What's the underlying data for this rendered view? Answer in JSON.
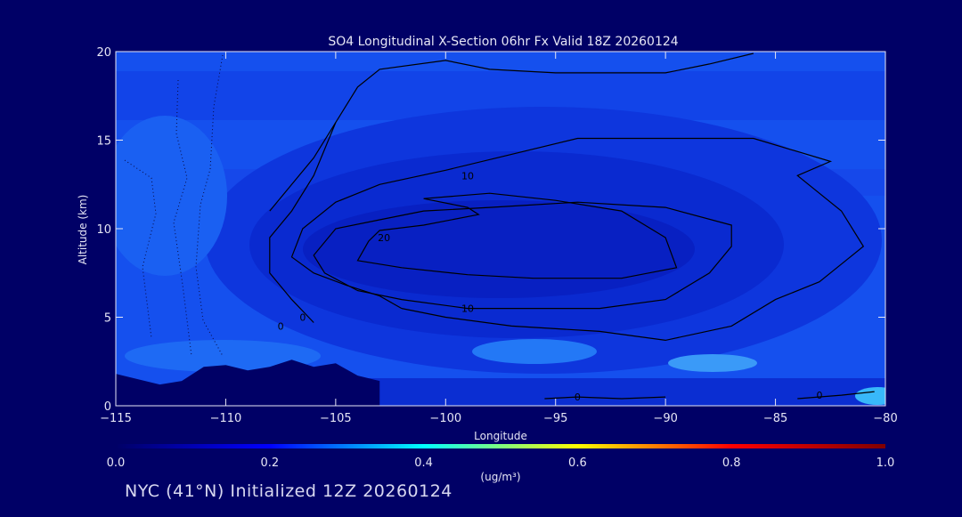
{
  "chart_data": {
    "type": "heatmap",
    "title": "SO4 Longitudinal X-Section 06hr  Fx Valid 18Z 20260124",
    "xlabel": "Longitude",
    "ylabel": "Altitude (km)",
    "xlim": [
      -115,
      -80
    ],
    "ylim": [
      0,
      20
    ],
    "x_ticks": [
      -115,
      -110,
      -105,
      -100,
      -95,
      -90,
      -85,
      -80
    ],
    "x_tick_labels": [
      "−115",
      "−110",
      "−105",
      "−100",
      "−95",
      "−90",
      "−85",
      "−80"
    ],
    "y_ticks": [
      0,
      5,
      10,
      15,
      20
    ],
    "y_tick_labels": [
      "0",
      "5",
      "10",
      "15",
      "20"
    ],
    "colorbar": {
      "min": 0.0,
      "max": 1.0,
      "ticks": [
        "0.0",
        "0.2",
        "0.4",
        "0.6",
        "0.8",
        "1.0"
      ],
      "unit_label": "(ug/m³)",
      "colors": [
        "#000066",
        "#0000ff",
        "#00ffff",
        "#ffff00",
        "#ff0000",
        "#800000"
      ]
    },
    "terrain": [
      [
        -115,
        1.8
      ],
      [
        -114,
        1.5
      ],
      [
        -113,
        1.2
      ],
      [
        -112,
        1.4
      ],
      [
        -111,
        2.2
      ],
      [
        -110,
        2.3
      ],
      [
        -109,
        2.0
      ],
      [
        -108,
        2.2
      ],
      [
        -107,
        2.6
      ],
      [
        -106,
        2.2
      ],
      [
        -105,
        2.4
      ],
      [
        -104,
        1.7
      ],
      [
        -103,
        1.4
      ]
    ],
    "contours": [
      {
        "level": "0",
        "label_at": [
          -107.5,
          4.5
        ],
        "points": [
          [
            -108,
            11
          ],
          [
            -106,
            14
          ],
          [
            -105,
            16
          ],
          [
            -104,
            18
          ],
          [
            -103,
            19
          ],
          [
            -100,
            19.5
          ],
          [
            -98,
            19
          ],
          [
            -95,
            18.8
          ],
          [
            -90,
            18.8
          ],
          [
            -88,
            19.3
          ],
          [
            -86,
            19.9
          ]
        ]
      },
      {
        "level": "0",
        "label_at": [
          -106.5,
          5
        ],
        "points": [
          [
            -106,
            4.7
          ],
          [
            -107,
            6
          ],
          [
            -108,
            7.5
          ],
          [
            -108,
            9.5
          ],
          [
            -107,
            11
          ],
          [
            -106,
            13
          ],
          [
            -105,
            16
          ]
        ]
      },
      {
        "level": "0",
        "label_at": [
          -94,
          0.5
        ],
        "points": [
          [
            -95.5,
            0.4
          ],
          [
            -94,
            0.5
          ],
          [
            -92,
            0.4
          ],
          [
            -90,
            0.5
          ]
        ]
      },
      {
        "level": "0",
        "label_at": [
          -83,
          0.6
        ],
        "points": [
          [
            -84,
            0.4
          ],
          [
            -82,
            0.6
          ],
          [
            -80.5,
            0.8
          ]
        ]
      },
      {
        "level": "10",
        "label_at": [
          -99,
          13
        ],
        "points": [
          [
            -102,
            5.5
          ],
          [
            -103,
            6.2
          ],
          [
            -104.5,
            6.8
          ],
          [
            -106,
            7.5
          ],
          [
            -107,
            8.4
          ],
          [
            -106.5,
            10
          ],
          [
            -105,
            11.5
          ],
          [
            -103,
            12.5
          ],
          [
            -100,
            13.3
          ],
          [
            -97,
            14.2
          ],
          [
            -94,
            15.1
          ],
          [
            -90,
            15.1
          ],
          [
            -86,
            15.1
          ],
          [
            -82.5,
            13.8
          ],
          [
            -84,
            13
          ],
          [
            -82,
            11
          ],
          [
            -81,
            9
          ],
          [
            -82,
            8
          ],
          [
            -83,
            7
          ],
          [
            -85,
            6
          ],
          [
            -87,
            4.5
          ],
          [
            -90,
            3.7
          ],
          [
            -93,
            4.2
          ],
          [
            -97,
            4.5
          ],
          [
            -100,
            5
          ],
          [
            -102,
            5.5
          ]
        ]
      },
      {
        "level": "10",
        "label_at": [
          -99,
          5.5
        ],
        "points": [
          [
            -99,
            5.5
          ],
          [
            -102,
            6
          ],
          [
            -104,
            6.5
          ],
          [
            -105.5,
            7.5
          ],
          [
            -106,
            8.5
          ],
          [
            -105,
            10
          ],
          [
            -103,
            10.5
          ],
          [
            -101,
            11
          ],
          [
            -98,
            11.2
          ],
          [
            -94,
            11.5
          ],
          [
            -90,
            11.2
          ],
          [
            -87,
            10.2
          ],
          [
            -87,
            9
          ],
          [
            -88,
            7.5
          ],
          [
            -90,
            6
          ],
          [
            -93,
            5.5
          ],
          [
            -96,
            5.5
          ],
          [
            -99,
            5.5
          ]
        ]
      },
      {
        "level": "20",
        "label_at": [
          -102.8,
          9.5
        ],
        "points": [
          [
            -103.5,
            9.3
          ],
          [
            -104,
            8.2
          ],
          [
            -102,
            7.8
          ],
          [
            -99,
            7.4
          ],
          [
            -96,
            7.2
          ],
          [
            -92,
            7.2
          ],
          [
            -89.5,
            7.8
          ],
          [
            -90,
            9.5
          ],
          [
            -92,
            11
          ],
          [
            -95,
            11.6
          ],
          [
            -98,
            12
          ],
          [
            -101,
            11.7
          ],
          [
            -99,
            11.2
          ],
          [
            -98.5,
            10.8
          ],
          [
            -101,
            10.2
          ],
          [
            -103,
            9.9
          ],
          [
            -103.5,
            9.3
          ]
        ]
      }
    ]
  },
  "footer": {
    "caption": "NYC (41°N) Initialized 12Z 20260124"
  }
}
